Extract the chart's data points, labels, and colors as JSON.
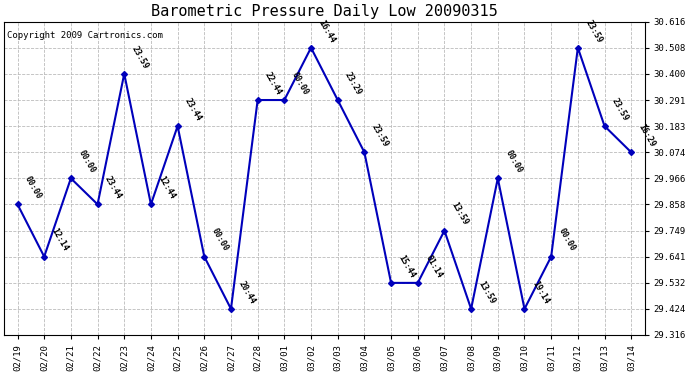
{
  "title": "Barometric Pressure Daily Low 20090315",
  "copyright": "Copyright 2009 Cartronics.com",
  "x_labels": [
    "02/19",
    "02/20",
    "02/21",
    "02/22",
    "02/23",
    "02/24",
    "02/25",
    "02/26",
    "02/27",
    "02/28",
    "03/01",
    "03/02",
    "03/03",
    "03/04",
    "03/05",
    "03/06",
    "03/07",
    "03/08",
    "03/09",
    "03/10",
    "03/11",
    "03/12",
    "03/13",
    "03/14"
  ],
  "y_values": [
    29.858,
    29.641,
    29.966,
    29.858,
    30.4,
    29.858,
    30.183,
    29.641,
    29.424,
    30.291,
    30.291,
    30.508,
    30.291,
    30.074,
    29.532,
    29.532,
    29.749,
    29.424,
    29.966,
    29.424,
    29.641,
    30.508,
    30.183,
    30.074
  ],
  "point_labels": [
    "00:00",
    "12:14",
    "00:00",
    "23:44",
    "23:59",
    "12:44",
    "23:44",
    "00:00",
    "20:44",
    "22:44",
    "00:00",
    "16:44",
    "23:29",
    "23:59",
    "15:44",
    "01:14",
    "13:59",
    "13:59",
    "00:00",
    "19:14",
    "00:00",
    "23:59",
    "23:59",
    "16:29"
  ],
  "line_color": "#0000bb",
  "marker_color": "#0000bb",
  "background_color": "#ffffff",
  "grid_color": "#bbbbbb",
  "ylim_min": 29.316,
  "ylim_max": 30.616,
  "yticks": [
    29.316,
    29.424,
    29.532,
    29.641,
    29.749,
    29.858,
    29.966,
    30.074,
    30.183,
    30.291,
    30.4,
    30.508,
    30.616
  ],
  "title_fontsize": 11,
  "copyright_fontsize": 6.5,
  "label_fontsize": 6,
  "fig_width": 6.9,
  "fig_height": 3.75,
  "dpi": 100
}
